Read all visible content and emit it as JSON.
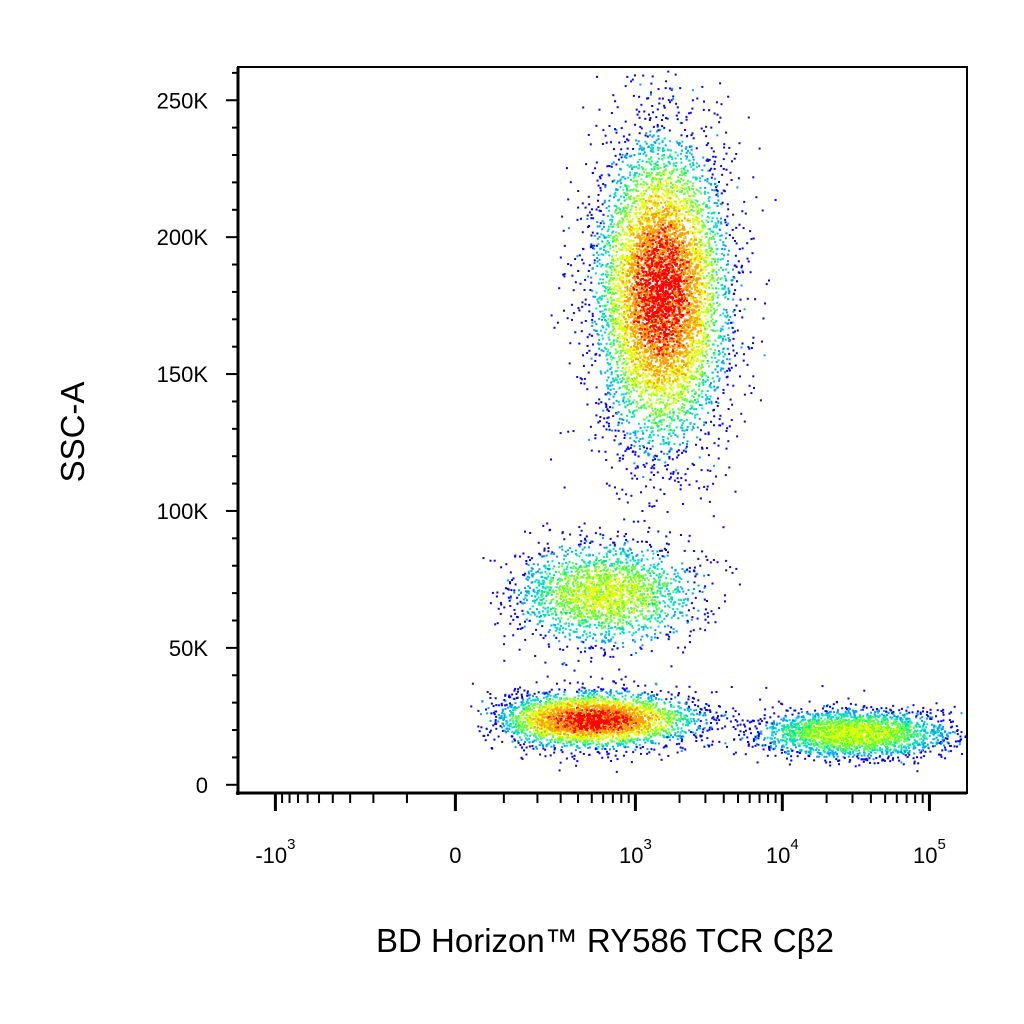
{
  "chart_data": {
    "type": "scatter",
    "plot_style": "flow cytometry pseudocolor density dot plot",
    "xlabel": "BD Horizon™ RY586 TCR Cβ2",
    "ylabel": "SSC-A",
    "x_scale": "biexponential",
    "y_scale": "linear",
    "xlim": [
      -1800,
      180000
    ],
    "ylim": [
      -3000,
      262144
    ],
    "x_ticks": [
      {
        "value": -1000,
        "label": "-10",
        "exp": "3"
      },
      {
        "value": 0,
        "label": "0",
        "exp": ""
      },
      {
        "value": 1000,
        "label": "10",
        "exp": "3"
      },
      {
        "value": 10000,
        "label": "10",
        "exp": "4"
      },
      {
        "value": 100000,
        "label": "10",
        "exp": "5"
      }
    ],
    "y_ticks": [
      {
        "value": 0,
        "label": "0"
      },
      {
        "value": 50000,
        "label": "50K"
      },
      {
        "value": 100000,
        "label": "100K"
      },
      {
        "value": 150000,
        "label": "150K"
      },
      {
        "value": 200000,
        "label": "200K"
      },
      {
        "value": 250000,
        "label": "250K"
      }
    ],
    "populations": [
      {
        "x": 1500,
        "y": 180000,
        "x_spread": 0.25,
        "y_spread": 50000,
        "count": 7000,
        "density": "high"
      },
      {
        "x": 600,
        "y": 70000,
        "x_spread": 0.35,
        "y_spread": 16000,
        "count": 2200,
        "density": "medium"
      },
      {
        "x": 500,
        "y": 24000,
        "x_spread": 0.4,
        "y_spread": 9000,
        "count": 3400,
        "density": "high"
      },
      {
        "x": 30000,
        "y": 19000,
        "x_spread": 0.35,
        "y_spread": 7500,
        "count": 2700,
        "density": "medium"
      }
    ],
    "density_colors": [
      "#0000ff",
      "#00a0ff",
      "#00e0c0",
      "#60ff40",
      "#e0ff00",
      "#ffa000",
      "#ff0000"
    ],
    "grid": false,
    "legend": "none"
  }
}
